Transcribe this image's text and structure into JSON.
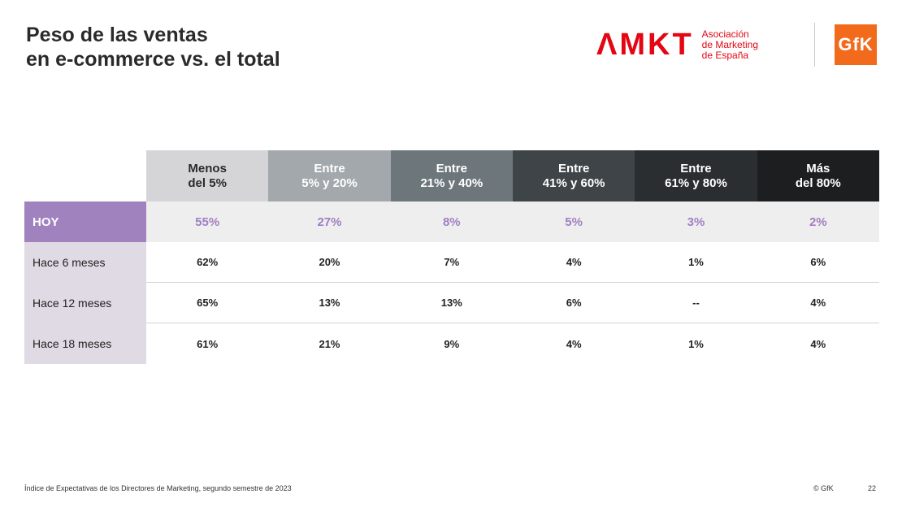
{
  "title": {
    "line1": "Peso de las ventas",
    "line2": "en e-commerce vs. el total"
  },
  "logos": {
    "amkt_mark": "ΛΜΚΤ",
    "amkt_text": [
      "Asociación",
      "de Marketing",
      "de España"
    ],
    "gfk": "GfK",
    "amkt_color": "#e30613",
    "gfk_color": "#f26a1b"
  },
  "table": {
    "columns": [
      {
        "lines": [
          "Menos",
          "del 5%"
        ],
        "bg": "#d5d5d8",
        "fg": "#2a2a2a"
      },
      {
        "lines": [
          "Entre",
          "5% y 20%"
        ],
        "bg": "#a3a8ad",
        "fg": "#ffffff"
      },
      {
        "lines": [
          "Entre",
          "21% y 40%"
        ],
        "bg": "#6d777b",
        "fg": "#ffffff"
      },
      {
        "lines": [
          "Entre",
          "41% y 60%"
        ],
        "bg": "#3e4448",
        "fg": "#ffffff"
      },
      {
        "lines": [
          "Entre",
          "61% y 80%"
        ],
        "bg": "#2b2e31",
        "fg": "#ffffff"
      },
      {
        "lines": [
          "Más",
          "del 80%"
        ],
        "bg": "#1c1e20",
        "fg": "#ffffff"
      }
    ],
    "rows": [
      {
        "label": "HOY",
        "values": [
          "55%",
          "27%",
          "8%",
          "5%",
          "3%",
          "2%"
        ],
        "highlight": true
      },
      {
        "label": "Hace 6 meses",
        "values": [
          "62%",
          "20%",
          "7%",
          "4%",
          "1%",
          "6%"
        ]
      },
      {
        "label": "Hace 12 meses",
        "values": [
          "65%",
          "13%",
          "13%",
          "6%",
          "--",
          "4%"
        ]
      },
      {
        "label": "Hace 18 meses",
        "values": [
          "61%",
          "21%",
          "9%",
          "4%",
          "1%",
          "4%"
        ]
      }
    ],
    "highlight_color": "#a082bf"
  },
  "footer": {
    "source": "Índice de Expectativas de los Directores de Marketing, segundo semestre de 2023",
    "copyright": "© GfK",
    "page": "22"
  }
}
